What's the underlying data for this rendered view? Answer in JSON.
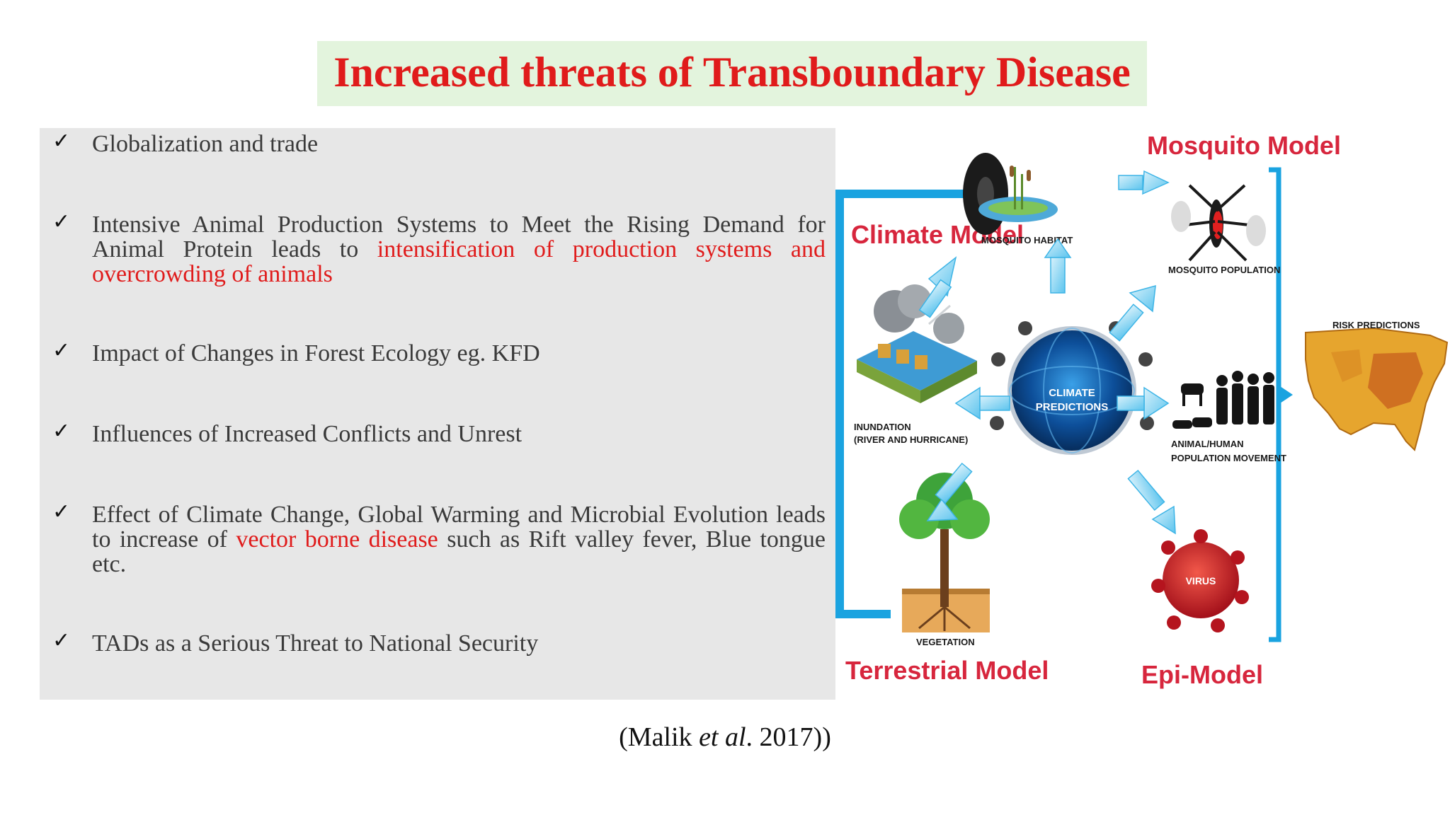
{
  "title": "Increased threats of Transboundary Disease",
  "bullets": [
    {
      "parts": [
        {
          "text": "Globalization and trade",
          "red": false
        }
      ]
    },
    {
      "parts": [
        {
          "text": "Intensive Animal Production Systems to Meet the Rising Demand for Animal Protein leads to ",
          "red": false
        },
        {
          "text": "intensification of production systems and overcrowding of animals",
          "red": true
        }
      ]
    },
    {
      "parts": [
        {
          "text": "Impact of Changes in Forest Ecology eg. KFD",
          "red": false
        }
      ]
    },
    {
      "parts": [
        {
          "text": "Influences of Increased Conflicts and Unrest",
          "red": false
        }
      ]
    },
    {
      "parts": [
        {
          "text": "Effect of Climate Change, Global Warming and Microbial Evolution leads to increase of ",
          "red": false
        },
        {
          "text": "vector borne disease",
          "red": true
        },
        {
          "text": " such as Rift valley fever, Blue tongue etc.",
          "red": false
        }
      ]
    },
    {
      "parts": [
        {
          "text": "TADs as a Serious Threat to National Security",
          "red": false
        }
      ]
    }
  ],
  "check_symbol": "✓",
  "citation": {
    "prefix": "(Malik ",
    "italic": "et al",
    "suffix": ". 2017))"
  },
  "diagram": {
    "mosquito_model": "Mosquito Model",
    "climate_model": "Climate Model",
    "terrestrial_model": "Terrestrial Model",
    "epi_model": "Epi-Model",
    "mosquito_habitat": "MOSQUITO HABITAT",
    "mosquito_population": "MOSQUITO POPULATION",
    "risk_predictions": "RISK PREDICTIONS",
    "inundation_line1": "INUNDATION",
    "inundation_line2": "(RIVER AND HURRICANE)",
    "climate_predictions_line1": "CLIMATE",
    "climate_predictions_line2": "PREDICTIONS",
    "animal_human_line1": "ANIMAL/HUMAN",
    "animal_human_line2": "POPULATION MOVEMENT",
    "vegetation": "VEGETATION",
    "virus": "VIRUS"
  },
  "colors": {
    "accent_red": "#e01b1b",
    "arrow_blue": "#1aa3e0",
    "title_bg": "#e3f4dd",
    "panel_bg": "#e7e7e7"
  }
}
